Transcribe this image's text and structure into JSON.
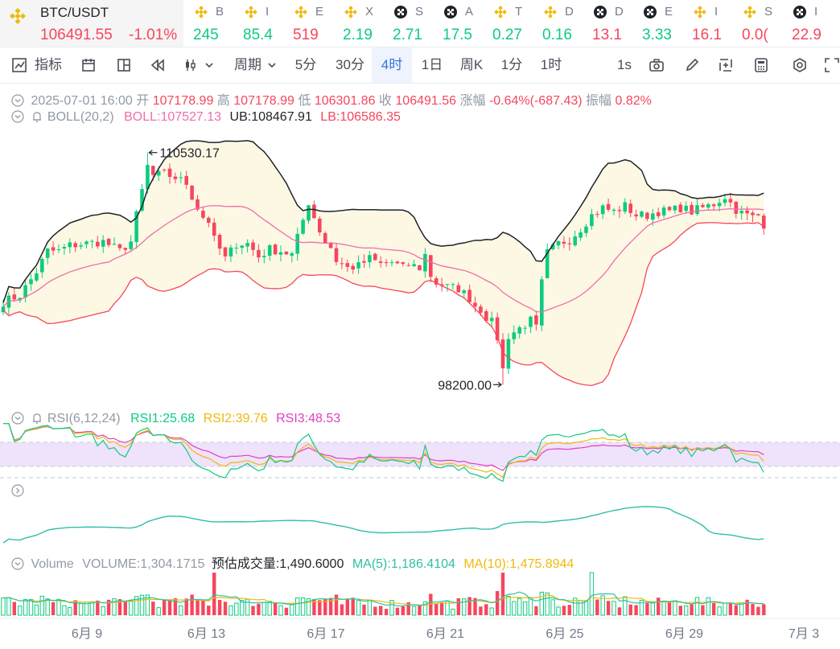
{
  "ticker": {
    "main": {
      "pair": "BTC/USDT",
      "price": "106491.55",
      "change": "-1.01%"
    },
    "items": [
      {
        "icon": "bnb-icon",
        "symbol": "B",
        "value": "245",
        "dir": "up"
      },
      {
        "icon": "bnb-icon",
        "symbol": "I",
        "value": "85.4",
        "dir": "up"
      },
      {
        "icon": "bnb-icon",
        "symbol": "E",
        "value": "519",
        "dir": "dn"
      },
      {
        "icon": "bnb-icon",
        "symbol": "X",
        "value": "2.19",
        "dir": "up"
      },
      {
        "icon": "checker-icon",
        "symbol": "S",
        "value": "2.71",
        "dir": "up"
      },
      {
        "icon": "checker-icon",
        "symbol": "A",
        "value": "17.5",
        "dir": "up"
      },
      {
        "icon": "bnb-icon",
        "symbol": "T",
        "value": "0.27",
        "dir": "up"
      },
      {
        "icon": "bnb-icon",
        "symbol": "D",
        "value": "0.16",
        "dir": "up"
      },
      {
        "icon": "checker-icon",
        "symbol": "D",
        "value": "13.1",
        "dir": "dn"
      },
      {
        "icon": "checker-icon",
        "symbol": "E",
        "value": "3.33",
        "dir": "up"
      },
      {
        "icon": "bnb-icon",
        "symbol": "I",
        "value": "16.1",
        "dir": "dn"
      },
      {
        "icon": "bnb-icon",
        "symbol": "S",
        "value": "0.0(",
        "dir": "dn"
      },
      {
        "icon": "checker-icon",
        "symbol": "I",
        "value": "22.9",
        "dir": "dn"
      }
    ]
  },
  "toolbar": {
    "indicators": "指标",
    "period": "周期",
    "intervals": [
      "5分",
      "30分",
      "4时",
      "1日",
      "周K",
      "1分",
      "1时"
    ],
    "active_interval": "4时",
    "right_label": "1s"
  },
  "ohlc": {
    "datetime": "2025-07-01 16:00",
    "open_label": "开",
    "open": "107178.99",
    "high_label": "高",
    "high": "107178.99",
    "low_label": "低",
    "low": "106301.86",
    "close_label": "收",
    "close": "106491.56",
    "chg_label": "涨幅",
    "chg": "-0.64%(-687.43)",
    "amp_label": "振幅",
    "amp": "0.82%"
  },
  "boll": {
    "name": "BOLL(20,2)",
    "mid": "BOLL:107527.13",
    "ub": "UB:108467.91",
    "lb": "LB:106586.35"
  },
  "rsi": {
    "name": "RSI(6,12,24)",
    "rsi1": "RSI1:25.68",
    "rsi2": "RSI2:39.76",
    "rsi3": "RSI3:48.53"
  },
  "volume_info": {
    "name": "Volume",
    "volume": "VOLUME:1,304.1715",
    "est": "预估成交量:1,490.6000",
    "ma5": "MA(5):1,186.4104",
    "ma10": "MA(10):1,475.8944"
  },
  "chart_data": {
    "type": "candlestick",
    "interval": "4h",
    "x_tick_labels": [
      "6月 9",
      "6月 13",
      "6月 17",
      "6月 21",
      "6月 25",
      "6月 29",
      "7月 3"
    ],
    "high_annotation": "110530.17",
    "low_annotation": "98200.00",
    "price_range": [
      97700,
      111800
    ],
    "colors": {
      "up": "#0ecb81",
      "down": "#f6465d",
      "boll_mid": "#f06ea9",
      "boll_upper": "#1e2329",
      "boll_lower": "#f6465d",
      "band_fill": "#fdf8e4",
      "rsi1": "#0ecb81",
      "rsi2": "#f0b90b",
      "rsi3": "#e040c0",
      "ma5": "#2ebfa5",
      "ma10": "#f0b90b"
    },
    "close_path": [
      [
        0,
        102600
      ],
      [
        3,
        102950
      ],
      [
        6,
        104200
      ],
      [
        8,
        105300
      ],
      [
        10,
        105300
      ],
      [
        12,
        105600
      ],
      [
        15,
        105700
      ],
      [
        18,
        105800
      ],
      [
        21,
        105300
      ],
      [
        23,
        105800
      ],
      [
        24,
        107200
      ],
      [
        25,
        108500
      ],
      [
        26,
        109800
      ],
      [
        27,
        109300
      ],
      [
        29,
        109400
      ],
      [
        31,
        109200
      ],
      [
        33,
        108900
      ],
      [
        34,
        108200
      ],
      [
        35,
        107600
      ],
      [
        36,
        107100
      ],
      [
        37,
        106900
      ],
      [
        38,
        105900
      ],
      [
        39,
        105400
      ],
      [
        40,
        104900
      ],
      [
        41,
        105300
      ],
      [
        42,
        105700
      ],
      [
        44,
        105700
      ],
      [
        46,
        105000
      ],
      [
        48,
        105400
      ],
      [
        50,
        105300
      ],
      [
        52,
        105100
      ],
      [
        53,
        106000
      ],
      [
        55,
        107900
      ],
      [
        56,
        107100
      ],
      [
        57,
        106400
      ],
      [
        58,
        105800
      ],
      [
        59,
        105500
      ],
      [
        60,
        104800
      ],
      [
        62,
        104400
      ],
      [
        64,
        104500
      ],
      [
        66,
        104900
      ],
      [
        68,
        104600
      ],
      [
        70,
        104700
      ],
      [
        72,
        104400
      ],
      [
        73,
        104600
      ],
      [
        75,
        104400
      ],
      [
        76,
        105100
      ],
      [
        77,
        104000
      ],
      [
        78,
        103600
      ],
      [
        80,
        103400
      ],
      [
        82,
        103300
      ],
      [
        84,
        102800
      ],
      [
        85,
        102400
      ],
      [
        86,
        102200
      ],
      [
        87,
        101800
      ],
      [
        88,
        101500
      ],
      [
        89,
        100700
      ],
      [
        90,
        99000
      ],
      [
        91,
        100800
      ],
      [
        93,
        101200
      ],
      [
        95,
        101600
      ],
      [
        96,
        101200
      ],
      [
        97,
        103600
      ],
      [
        98,
        105200
      ],
      [
        100,
        105700
      ],
      [
        102,
        105900
      ],
      [
        104,
        106500
      ],
      [
        106,
        107200
      ],
      [
        108,
        107600
      ],
      [
        110,
        107400
      ],
      [
        112,
        107700
      ],
      [
        114,
        107200
      ],
      [
        116,
        107200
      ],
      [
        118,
        107400
      ],
      [
        120,
        107400
      ],
      [
        122,
        107600
      ],
      [
        124,
        107400
      ],
      [
        126,
        107600
      ],
      [
        128,
        107800
      ],
      [
        130,
        108200
      ],
      [
        132,
        107500
      ],
      [
        133,
        107300
      ],
      [
        135,
        107100
      ],
      [
        136,
        107200
      ],
      [
        137,
        106490
      ]
    ]
  }
}
